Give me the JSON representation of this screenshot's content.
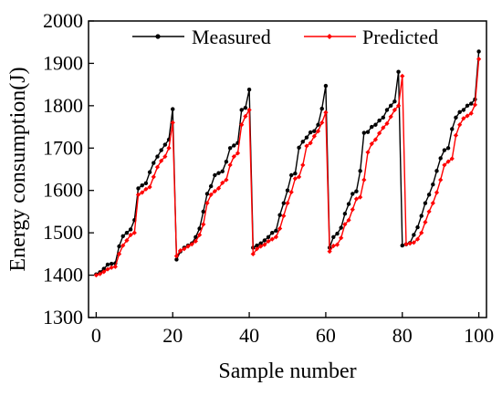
{
  "chart_data": {
    "type": "line",
    "xlabel": "Sample number",
    "ylabel": "Energy consumption(J)",
    "xlim": [
      -2,
      102
    ],
    "ylim": [
      1300,
      2000
    ],
    "xticks": [
      0,
      20,
      40,
      60,
      80,
      100
    ],
    "yticks": [
      1300,
      1400,
      1500,
      1600,
      1700,
      1800,
      1900,
      2000
    ],
    "grid": false,
    "legend_position": "top-right",
    "x": [
      0,
      1,
      2,
      3,
      4,
      5,
      6,
      7,
      8,
      9,
      10,
      11,
      12,
      13,
      14,
      15,
      16,
      17,
      18,
      19,
      20,
      21,
      22,
      23,
      24,
      25,
      26,
      27,
      28,
      29,
      30,
      31,
      32,
      33,
      34,
      35,
      36,
      37,
      38,
      39,
      40,
      41,
      42,
      43,
      44,
      45,
      46,
      47,
      48,
      49,
      50,
      51,
      52,
      53,
      54,
      55,
      56,
      57,
      58,
      59,
      60,
      61,
      62,
      63,
      64,
      65,
      66,
      67,
      68,
      69,
      70,
      71,
      72,
      73,
      74,
      75,
      76,
      77,
      78,
      79,
      80,
      81,
      82,
      83,
      84,
      85,
      86,
      87,
      88,
      89,
      90,
      91,
      92,
      93,
      94,
      95,
      96,
      97,
      98,
      99,
      100
    ],
    "series": [
      {
        "name": "Measured",
        "color": "#000000",
        "values": [
          1402,
          1407,
          1415,
          1425,
          1427,
          1428,
          1468,
          1492,
          1500,
          1508,
          1530,
          1605,
          1612,
          1617,
          1643,
          1665,
          1680,
          1695,
          1708,
          1720,
          1792,
          1437,
          1456,
          1465,
          1470,
          1475,
          1490,
          1510,
          1550,
          1592,
          1610,
          1636,
          1641,
          1645,
          1668,
          1700,
          1706,
          1712,
          1790,
          1795,
          1838,
          1465,
          1470,
          1475,
          1482,
          1490,
          1500,
          1505,
          1542,
          1570,
          1600,
          1636,
          1640,
          1701,
          1715,
          1725,
          1737,
          1740,
          1755,
          1793,
          1847,
          1465,
          1490,
          1498,
          1512,
          1545,
          1568,
          1592,
          1598,
          1646,
          1736,
          1738,
          1750,
          1755,
          1765,
          1772,
          1790,
          1800,
          1810,
          1880,
          1470,
          1473,
          1476,
          1495,
          1513,
          1540,
          1570,
          1590,
          1614,
          1646,
          1676,
          1695,
          1700,
          1745,
          1772,
          1785,
          1790,
          1800,
          1805,
          1815,
          1928
        ]
      },
      {
        "name": "Predicted",
        "color": "#ff0000",
        "values": [
          1400,
          1403,
          1408,
          1414,
          1418,
          1420,
          1450,
          1470,
          1482,
          1495,
          1500,
          1590,
          1595,
          1603,
          1608,
          1632,
          1655,
          1670,
          1680,
          1700,
          1760,
          1445,
          1458,
          1462,
          1468,
          1473,
          1480,
          1495,
          1520,
          1570,
          1590,
          1598,
          1605,
          1618,
          1625,
          1660,
          1680,
          1688,
          1755,
          1775,
          1790,
          1450,
          1462,
          1468,
          1472,
          1480,
          1485,
          1490,
          1510,
          1540,
          1570,
          1596,
          1628,
          1632,
          1660,
          1705,
          1712,
          1728,
          1740,
          1760,
          1784,
          1456,
          1469,
          1472,
          1488,
          1520,
          1530,
          1555,
          1580,
          1584,
          1625,
          1690,
          1710,
          1720,
          1735,
          1748,
          1758,
          1774,
          1790,
          1800,
          1870,
          1473,
          1475,
          1477,
          1485,
          1500,
          1525,
          1550,
          1570,
          1595,
          1625,
          1660,
          1668,
          1675,
          1730,
          1755,
          1770,
          1776,
          1782,
          1802,
          1910
        ]
      }
    ]
  }
}
